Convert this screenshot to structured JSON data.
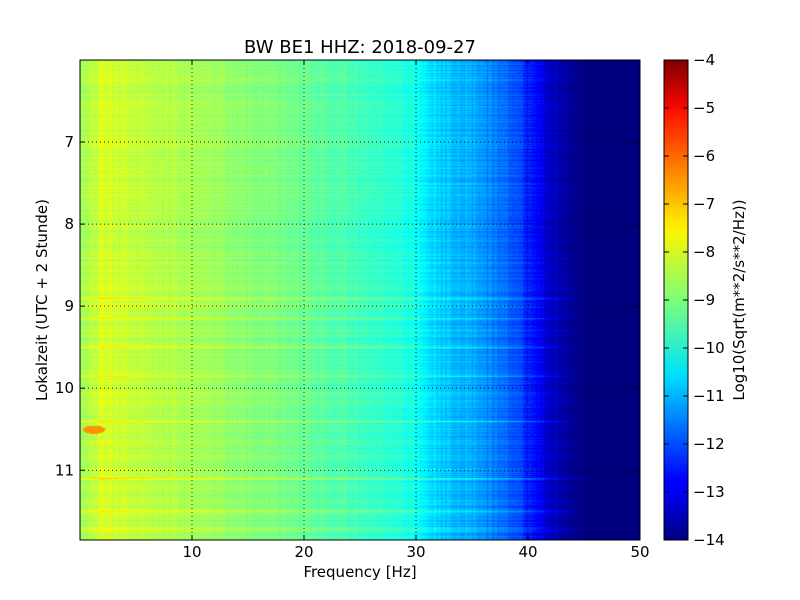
{
  "chart_data": {
    "type": "heatmap",
    "title": "BW BE1 HHZ: 2018-09-27",
    "xlabel": "Frequency [Hz]",
    "ylabel": "Lokalzeit (UTC + 2 Stunde)",
    "xlim": [
      0,
      50
    ],
    "ylim": [
      6.0,
      11.85
    ],
    "y_inverted": true,
    "x_ticks": [
      10,
      20,
      30,
      40,
      50
    ],
    "y_ticks": [
      7,
      8,
      9,
      10,
      11
    ],
    "grid": true,
    "colormap": "jet",
    "colorbar": {
      "label": "Log10(Sqrt(m**2/s**2/Hz))",
      "range": [
        -14,
        -4
      ],
      "ticks": [
        -4,
        -5,
        -6,
        -7,
        -8,
        -9,
        -10,
        -11,
        -12,
        -13,
        -14
      ]
    },
    "profile": {
      "frequency_hz": [
        0,
        2,
        5,
        10,
        15,
        20,
        25,
        30,
        32,
        35,
        38,
        40,
        42,
        44,
        45,
        50
      ],
      "level": [
        -8.7,
        -8.1,
        -8.4,
        -8.6,
        -8.9,
        -9.2,
        -9.6,
        -10.1,
        -10.7,
        -11.1,
        -11.7,
        -12.4,
        -13.3,
        -13.8,
        -14,
        -14
      ]
    },
    "bands": [
      {
        "hour": 8.9,
        "delta": 0.8
      },
      {
        "hour": 9.0,
        "delta": 0.6
      },
      {
        "hour": 9.15,
        "delta": 0.7
      },
      {
        "hour": 9.5,
        "delta": 0.8
      },
      {
        "hour": 9.85,
        "delta": 0.5
      },
      {
        "hour": 10.4,
        "delta": 0.6
      },
      {
        "hour": 11.1,
        "delta": 0.9
      },
      {
        "hour": 11.5,
        "delta": 0.5
      },
      {
        "hour": 11.7,
        "delta": 0.4
      }
    ],
    "hotspot": {
      "frequency_hz": 1.2,
      "hour": 10.5,
      "level": -6.7
    }
  }
}
